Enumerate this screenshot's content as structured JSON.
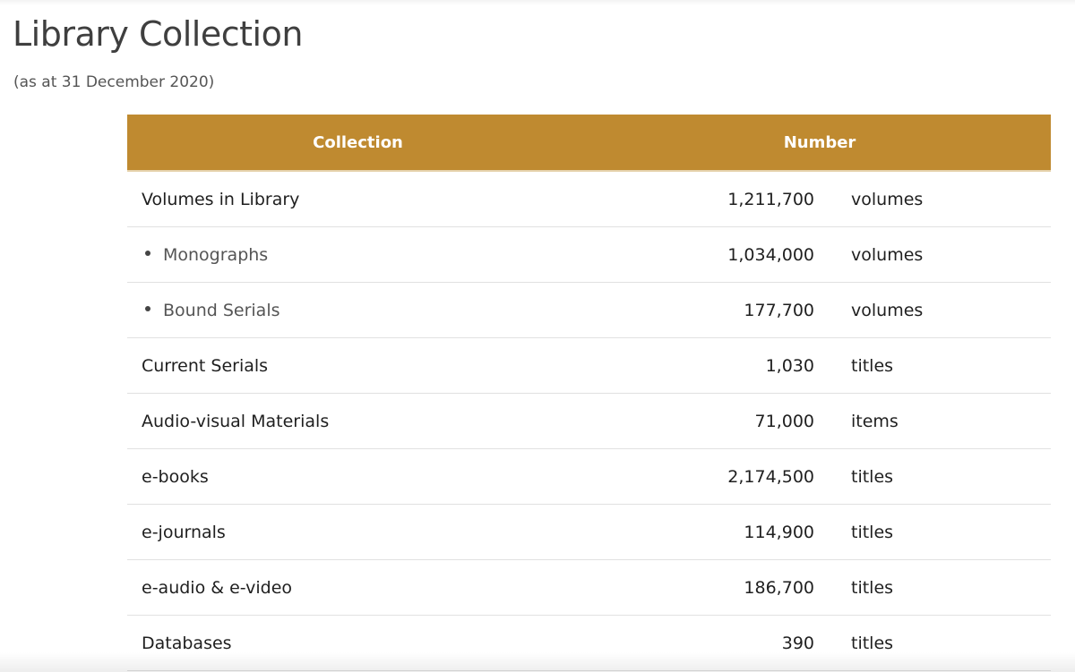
{
  "page": {
    "title": "Library Collection",
    "subtitle": "(as at 31 December 2020)"
  },
  "table": {
    "header_color": "#bf8a30",
    "headers": {
      "collection": "Collection",
      "number": "Number"
    },
    "rows": [
      {
        "name": "Volumes in Library",
        "number": "1,211,700",
        "unit": "volumes",
        "sub": false
      },
      {
        "name": "Monographs",
        "number": "1,034,000",
        "unit": "volumes",
        "sub": true
      },
      {
        "name": "Bound Serials",
        "number": "177,700",
        "unit": "volumes",
        "sub": true
      },
      {
        "name": "Current Serials",
        "number": "1,030",
        "unit": "titles",
        "sub": false
      },
      {
        "name": "Audio-visual Materials",
        "number": "71,000",
        "unit": "items",
        "sub": false
      },
      {
        "name": "e-books",
        "number": "2,174,500",
        "unit": "titles",
        "sub": false
      },
      {
        "name": "e-journals",
        "number": "114,900",
        "unit": "titles",
        "sub": false
      },
      {
        "name": "e-audio & e-video",
        "number": "186,700",
        "unit": "titles",
        "sub": false
      },
      {
        "name": "Databases",
        "number": "390",
        "unit": "titles",
        "sub": false
      }
    ]
  }
}
